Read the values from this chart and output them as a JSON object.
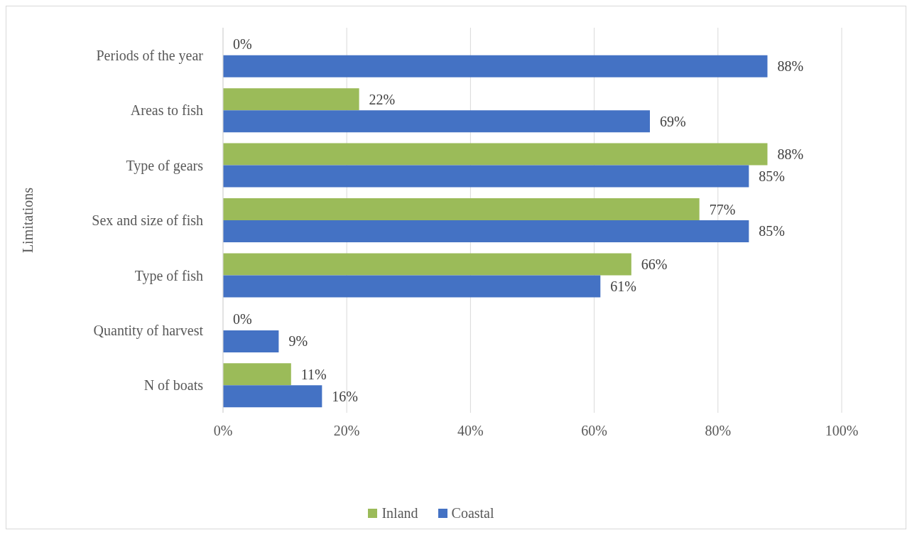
{
  "chart_data": {
    "type": "bar",
    "orientation": "horizontal",
    "ylabel": "Limitations",
    "categories": [
      "Periods of the year",
      "Areas to fish",
      "Type of gears",
      "Sex and size of fish",
      "Type of fish",
      "Quantity of harvest",
      "N of boats"
    ],
    "series": [
      {
        "name": "Inland",
        "color": "#9bbb59",
        "values": [
          0,
          22,
          88,
          77,
          66,
          0,
          11
        ],
        "value_labels": [
          "0%",
          "22%",
          "88%",
          "77%",
          "66%",
          "0%",
          "11%"
        ]
      },
      {
        "name": "Coastal",
        "color": "#4472c4",
        "values": [
          88,
          69,
          85,
          85,
          61,
          9,
          16
        ],
        "value_labels": [
          "88%",
          "69%",
          "85%",
          "85%",
          "61%",
          "9%",
          "16%"
        ]
      }
    ],
    "xlim": [
      0,
      100
    ],
    "xticks": [
      {
        "value": 0,
        "label": "0%"
      },
      {
        "value": 20,
        "label": "20%"
      },
      {
        "value": 40,
        "label": "40%"
      },
      {
        "value": 60,
        "label": "60%"
      },
      {
        "value": 80,
        "label": "80%"
      },
      {
        "value": 100,
        "label": "100%"
      }
    ],
    "grid": "x",
    "legend": "bottom"
  }
}
